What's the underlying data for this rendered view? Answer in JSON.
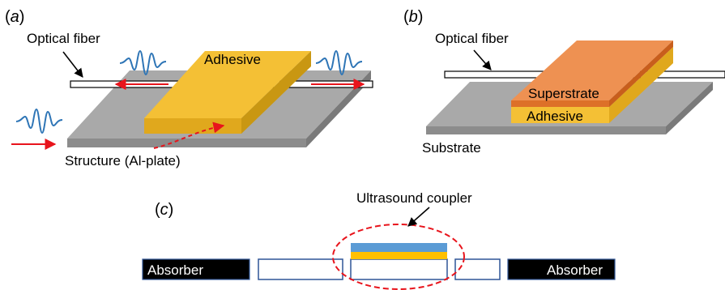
{
  "colors": {
    "plate_top": "#a9a9a9",
    "plate_front": "#8c8c8c",
    "plate_side": "#7a7a7a",
    "adhesive_top": "#f4c035",
    "adhesive_front": "#e0a81d",
    "superstrate_top": "#ee9152",
    "superstrate_front": "#dd7028",
    "wave": "#2e75b6",
    "arrow": "#e8141c",
    "coupler_blue": "#5b9bd5",
    "coupler_yellow": "#ffc000",
    "absorber": "#000000",
    "box_stroke": "#2f5597",
    "ellipse": "#e8141c"
  },
  "panel_a": {
    "tag_open": "(",
    "tag_letter": "a",
    "tag_close": ")",
    "fiber_label": "Optical fiber",
    "adhesive_label": "Adhesive",
    "structure_label": "Structure (Al-plate)"
  },
  "panel_b": {
    "tag_open": "(",
    "tag_letter": "b",
    "tag_close": ")",
    "fiber_label": "Optical fiber",
    "superstrate_label": "Superstrate",
    "adhesive_label": "Adhesive",
    "substrate_label": "Substrate"
  },
  "panel_c": {
    "tag_open": "(",
    "tag_letter": "c",
    "tag_close": ")",
    "coupler_label": "Ultrasound coupler",
    "absorber_left": "Absorber",
    "absorber_right": "Absorber"
  }
}
